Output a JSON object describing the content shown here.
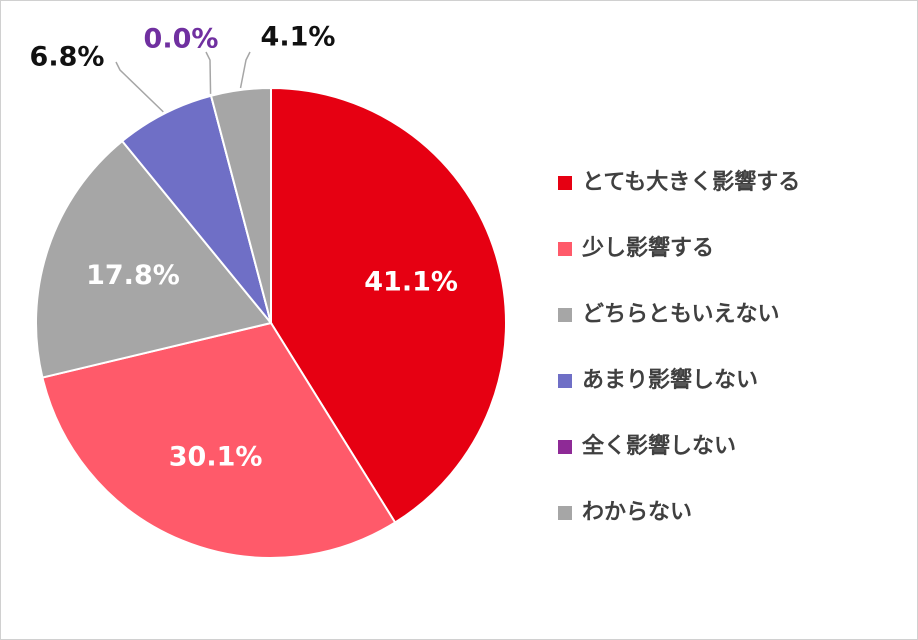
{
  "chart_data": {
    "type": "pie",
    "categories": [
      "とても大きく影響する",
      "少し影響する",
      "どちらともいえない",
      "あまり影響しない",
      "全く影響しない",
      "わからない"
    ],
    "values": [
      41.1,
      30.1,
      17.8,
      6.8,
      0.0,
      4.1
    ],
    "value_labels": [
      "41.1%",
      "30.1%",
      "17.8%",
      "6.8%",
      "0.0%",
      "4.1%"
    ],
    "colors": [
      "#e60012",
      "#ff5a6a",
      "#a6a6a6",
      "#6f6fc6",
      "#8e2a96",
      "#a6a6a6"
    ],
    "legend": "right"
  }
}
